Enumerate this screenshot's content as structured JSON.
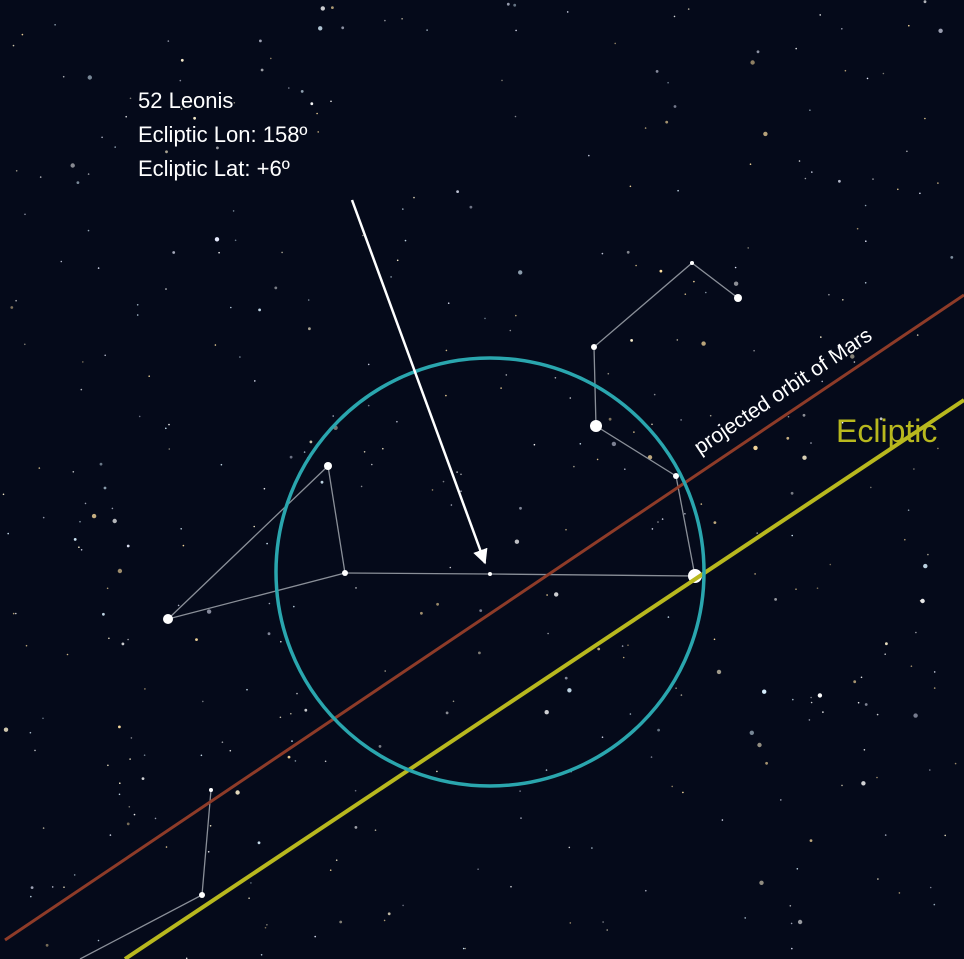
{
  "annotation": {
    "lines": [
      "52 Leonis",
      "Ecliptic Lon: 158º",
      "Ecliptic Lat: +6º"
    ]
  },
  "labels": {
    "orbit": "projected orbit of Mars",
    "ecliptic": "Ecliptic"
  }
}
